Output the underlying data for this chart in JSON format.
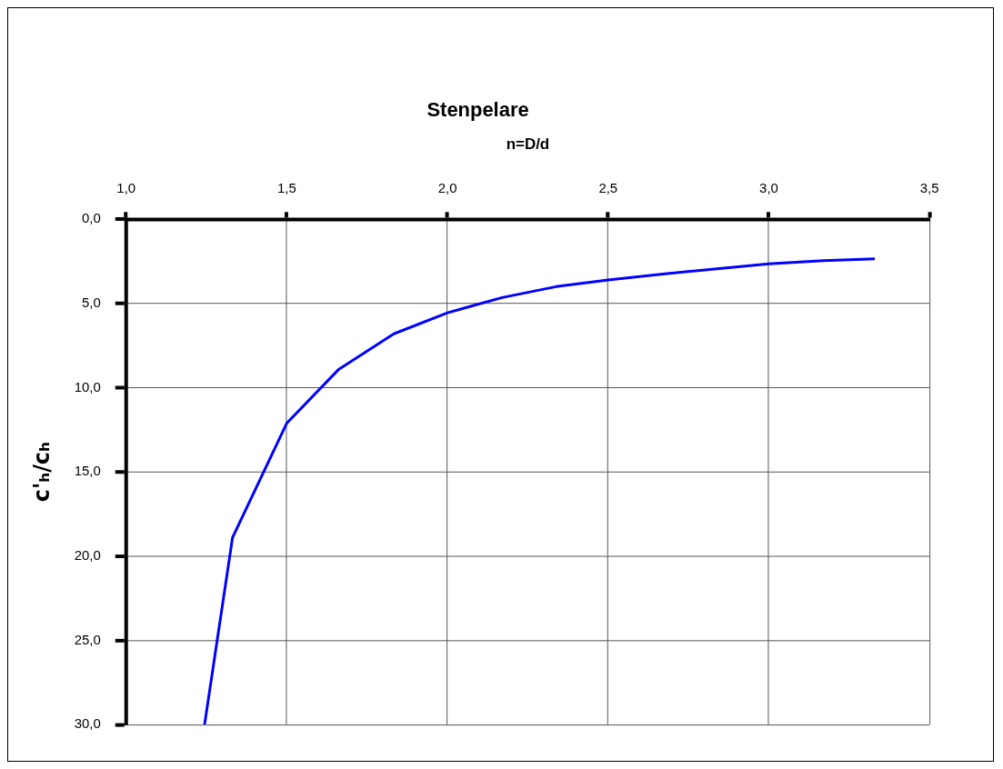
{
  "chart_data": {
    "type": "line",
    "title": "Stenpelare",
    "xlabel": "n=D/d",
    "ylabel": "c'ₕ/cₕ",
    "x": [
      1.244,
      1.331,
      1.5,
      1.662,
      1.833,
      2.0,
      2.17,
      2.338,
      2.5,
      2.67,
      3.0,
      3.17,
      3.33
    ],
    "series": [
      {
        "color": "#0000ff",
        "values": [
          30,
          18.9,
          12.1,
          8.9,
          6.8,
          5.55,
          4.65,
          4.0,
          3.6,
          3.25,
          2.65,
          2.45,
          2.35
        ]
      }
    ],
    "xlim": [
      1,
      3.5
    ],
    "xticks": [
      {
        "value": 1,
        "label": "1,0"
      },
      {
        "value": 1.5,
        "label": "1,5"
      },
      {
        "value": 2,
        "label": "2,0"
      },
      {
        "value": 2.5,
        "label": "2,5"
      },
      {
        "value": 3,
        "label": "3,0"
      },
      {
        "value": 3.5,
        "label": "3,5"
      }
    ],
    "ylim": [
      30,
      0
    ],
    "yticks": [
      {
        "value": 0,
        "label": "0,0"
      },
      {
        "value": 5,
        "label": "5,0"
      },
      {
        "value": 10,
        "label": "10,0"
      },
      {
        "value": 15,
        "label": "15,0"
      },
      {
        "value": 20,
        "label": "20,0"
      },
      {
        "value": 25,
        "label": "25,0"
      },
      {
        "value": 30,
        "label": "30,0"
      }
    ],
    "grid": true,
    "legend": false,
    "marker": "none",
    "line_style": "solid"
  }
}
